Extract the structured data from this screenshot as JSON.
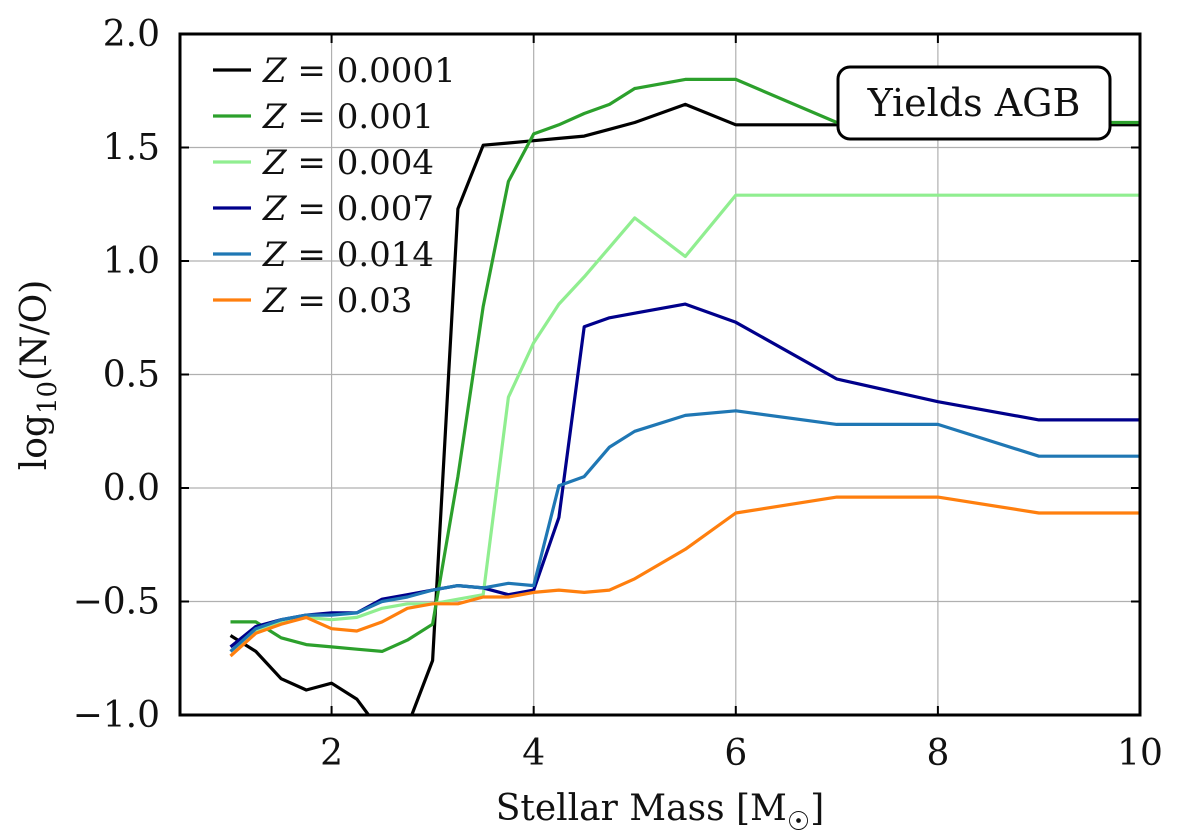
{
  "chart_data": {
    "type": "line",
    "xlabel": "Stellar Mass [M",
    "xlabel_symbol": "☉",
    "xlabel_close": "]",
    "ylabel": "log",
    "ylabel_sub": "10",
    "ylabel_rest": "(N/O)",
    "xlim": [
      0.5,
      10
    ],
    "ylim": [
      -1.0,
      2.0
    ],
    "xticks": [
      2,
      4,
      6,
      8,
      10
    ],
    "xtick_labels": [
      "2",
      "4",
      "6",
      "8",
      "10"
    ],
    "yticks": [
      -1.0,
      -0.5,
      0.0,
      0.5,
      1.0,
      1.5,
      2.0
    ],
    "ytick_labels": [
      "−1.0",
      "−0.5",
      "0.0",
      "0.5",
      "1.0",
      "1.5",
      "2.0"
    ],
    "grid": true,
    "legend_position": "top-left",
    "annotation": "Yields AGB",
    "annotation_position": "top-right",
    "series": [
      {
        "name": "Z = 0.0001",
        "z_value": "0.0001",
        "color": "#000000",
        "x": [
          1.0,
          1.25,
          1.5,
          1.75,
          2.0,
          2.25,
          2.5,
          2.75,
          3.0,
          3.25,
          3.5,
          3.75,
          4.0,
          4.25,
          4.5,
          4.75,
          5.0,
          5.5,
          6.0,
          7.0,
          8.0,
          9.0,
          10.0
        ],
        "y": [
          -0.65,
          -0.72,
          -0.84,
          -0.89,
          -0.86,
          -0.93,
          -1.08,
          -1.05,
          -0.76,
          1.23,
          1.51,
          1.52,
          1.53,
          1.54,
          1.55,
          1.58,
          1.61,
          1.69,
          1.6,
          1.6,
          1.6,
          1.6,
          1.6
        ]
      },
      {
        "name": "Z = 0.001",
        "z_value": "0.001",
        "color": "#2ca02c",
        "x": [
          1.0,
          1.25,
          1.5,
          1.75,
          2.0,
          2.25,
          2.5,
          2.75,
          3.0,
          3.25,
          3.5,
          3.75,
          4.0,
          4.25,
          4.5,
          4.75,
          5.0,
          5.5,
          6.0,
          7.0,
          8.0,
          9.0,
          10.0
        ],
        "y": [
          -0.59,
          -0.59,
          -0.66,
          -0.69,
          -0.7,
          -0.71,
          -0.72,
          -0.67,
          -0.6,
          0.05,
          0.8,
          1.35,
          1.56,
          1.6,
          1.65,
          1.69,
          1.76,
          1.8,
          1.8,
          1.61,
          1.61,
          1.61,
          1.61
        ]
      },
      {
        "name": "Z = 0.004",
        "z_value": "0.004",
        "color": "#90ee90",
        "x": [
          1.0,
          1.25,
          1.5,
          1.75,
          2.0,
          2.25,
          2.5,
          2.75,
          3.0,
          3.25,
          3.5,
          3.75,
          4.0,
          4.25,
          4.5,
          4.75,
          5.0,
          5.5,
          6.0,
          7.0,
          8.0,
          9.0,
          10.0
        ],
        "y": [
          -0.72,
          -0.63,
          -0.59,
          -0.57,
          -0.58,
          -0.57,
          -0.53,
          -0.51,
          -0.51,
          -0.49,
          -0.47,
          0.4,
          0.64,
          0.81,
          0.93,
          1.06,
          1.19,
          1.02,
          1.29,
          1.29,
          1.29,
          1.29,
          1.29
        ]
      },
      {
        "name": "Z = 0.007",
        "z_value": "0.007",
        "color": "#00008b",
        "x": [
          1.0,
          1.25,
          1.5,
          1.75,
          2.0,
          2.25,
          2.5,
          2.75,
          3.0,
          3.25,
          3.5,
          3.75,
          4.0,
          4.25,
          4.5,
          4.75,
          5.0,
          5.5,
          6.0,
          7.0,
          8.0,
          9.0,
          10.0
        ],
        "y": [
          -0.7,
          -0.61,
          -0.58,
          -0.56,
          -0.55,
          -0.55,
          -0.49,
          -0.47,
          -0.45,
          -0.43,
          -0.44,
          -0.47,
          -0.45,
          -0.13,
          0.71,
          0.75,
          0.77,
          0.81,
          0.73,
          0.48,
          0.38,
          0.3,
          0.3
        ]
      },
      {
        "name": "Z = 0.014",
        "z_value": "0.014",
        "color": "#1f77b4",
        "x": [
          1.0,
          1.25,
          1.5,
          1.75,
          2.0,
          2.25,
          2.5,
          2.75,
          3.0,
          3.25,
          3.5,
          3.75,
          4.0,
          4.25,
          4.5,
          4.75,
          5.0,
          5.5,
          6.0,
          7.0,
          8.0,
          9.0,
          10.0
        ],
        "y": [
          -0.72,
          -0.62,
          -0.58,
          -0.56,
          -0.56,
          -0.55,
          -0.5,
          -0.48,
          -0.45,
          -0.43,
          -0.44,
          -0.42,
          -0.43,
          0.01,
          0.05,
          0.18,
          0.25,
          0.32,
          0.34,
          0.28,
          0.28,
          0.14,
          0.14
        ]
      },
      {
        "name": "Z = 0.03",
        "z_value": "0.03",
        "color": "#ff7f0e",
        "x": [
          1.0,
          1.25,
          1.5,
          1.75,
          2.0,
          2.25,
          2.5,
          2.75,
          3.0,
          3.25,
          3.5,
          3.75,
          4.0,
          4.25,
          4.5,
          4.75,
          5.0,
          5.5,
          6.0,
          7.0,
          8.0,
          9.0,
          10.0
        ],
        "y": [
          -0.74,
          -0.64,
          -0.6,
          -0.57,
          -0.62,
          -0.63,
          -0.59,
          -0.53,
          -0.51,
          -0.51,
          -0.48,
          -0.48,
          -0.46,
          -0.45,
          -0.46,
          -0.45,
          -0.4,
          -0.27,
          -0.11,
          -0.04,
          -0.04,
          -0.11,
          -0.11
        ]
      }
    ]
  }
}
